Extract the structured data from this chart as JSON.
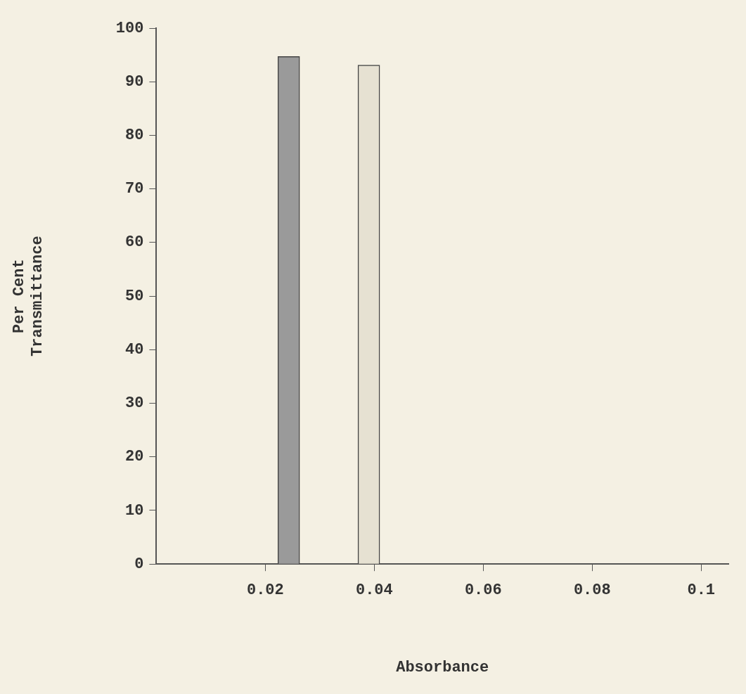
{
  "chart_data": {
    "type": "bar",
    "x": [
      0.0243,
      0.039
    ],
    "values": [
      94.7,
      93.1
    ],
    "colors": [
      "#9a9a9a",
      "#e6e1d2"
    ],
    "xlabel": "Absorbance",
    "ylabel": "Per Cent\nTransmittance",
    "xlim": [
      0,
      0.105
    ],
    "xticks": [
      0.02,
      0.04,
      0.06,
      0.08,
      0.1
    ],
    "ylim": [
      0,
      100
    ],
    "yticks": [
      0,
      10,
      20,
      30,
      40,
      50,
      60,
      70,
      80,
      90,
      100
    ],
    "grid": false,
    "legend": false
  }
}
